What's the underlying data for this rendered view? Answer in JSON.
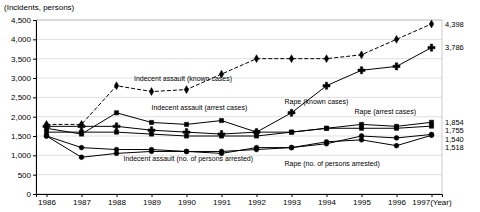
{
  "chart_data": {
    "type": "line",
    "y_label": "(Incidents, persons)",
    "x": [
      1986,
      1987,
      1988,
      1989,
      1990,
      1991,
      1992,
      1993,
      1994,
      1995,
      1996,
      1997
    ],
    "xlim": [
      1985.7,
      1997.3
    ],
    "xticks": [
      1986,
      1987,
      1988,
      1989,
      1990,
      1991,
      1992,
      1993,
      1994,
      1995,
      1996,
      {
        "value": 1997,
        "label": "1997(Year)"
      }
    ],
    "ylim": [
      0,
      4500
    ],
    "yticks": [
      0,
      500,
      {
        "value": 1000,
        "label": "1,000"
      },
      {
        "value": 1500,
        "label": "1,500"
      },
      {
        "value": 2000,
        "label": "2,000"
      },
      {
        "value": 2500,
        "label": "2,500"
      },
      {
        "value": 3000,
        "label": "3,000"
      },
      {
        "value": 3500,
        "label": "3,500"
      },
      {
        "value": 4000,
        "label": "4,000"
      },
      {
        "value": 4500,
        "label": "4,500"
      }
    ],
    "grid": true,
    "series": [
      {
        "color": "#000000",
        "marker": "diamond",
        "line_style": "dashed",
        "values": [
          1800,
          1800,
          2800,
          2650,
          2700,
          3100,
          3500,
          3500,
          3500,
          3600,
          4000,
          4398
        ],
        "value_labels": [
          null,
          null,
          null,
          null,
          null,
          null,
          null,
          null,
          null,
          null,
          null,
          "4,398"
        ]
      },
      {
        "color": "#000000",
        "marker": "plus",
        "line_style": "solid",
        "values": [
          1750,
          1750,
          1750,
          1650,
          1600,
          1550,
          1600,
          2100,
          2800,
          3200,
          3300,
          3786
        ],
        "value_labels": [
          null,
          null,
          null,
          null,
          null,
          null,
          null,
          null,
          null,
          null,
          null,
          "3,786"
        ]
      },
      {
        "color": "#000000",
        "marker": "square",
        "line_style": "solid",
        "values": [
          1700,
          1550,
          2100,
          1850,
          1800,
          1900,
          1600,
          1600,
          1700,
          1700,
          1700,
          1755
        ],
        "value_labels": [
          null,
          null,
          null,
          null,
          null,
          null,
          null,
          null,
          null,
          null,
          null,
          "1,755"
        ]
      },
      {
        "color": "#000000",
        "marker": "square",
        "line_style": "solid",
        "values": [
          1600,
          1600,
          1600,
          1550,
          1500,
          1500,
          1500,
          1600,
          1700,
          1800,
          1750,
          1854
        ],
        "value_labels": [
          null,
          null,
          null,
          null,
          null,
          null,
          null,
          null,
          null,
          null,
          null,
          "1,854"
        ]
      },
      {
        "color": "#000000",
        "marker": "circle",
        "line_style": "solid",
        "values": [
          1500,
          950,
          1050,
          1100,
          1100,
          1050,
          1200,
          1200,
          1300,
          1500,
          1450,
          1540
        ],
        "value_labels": [
          null,
          null,
          null,
          null,
          null,
          null,
          null,
          null,
          null,
          null,
          null,
          "1,540"
        ]
      },
      {
        "color": "#000000",
        "marker": "circle",
        "line_style": "solid",
        "values": [
          1500,
          1200,
          1150,
          1150,
          1100,
          1100,
          1150,
          1200,
          1350,
          1400,
          1250,
          1518
        ],
        "value_labels": [
          null,
          null,
          null,
          null,
          null,
          null,
          null,
          null,
          null,
          null,
          null,
          "1,518"
        ]
      }
    ],
    "annotations": [
      {
        "text": "Indecent assault (known cases)",
        "x": 1988.5,
        "y": 2900
      },
      {
        "text": "Indecent assault (arrest cases)",
        "x": 1989.0,
        "y": 2150
      },
      {
        "text": "Rape (known cases)",
        "x": 1992.8,
        "y": 2300
      },
      {
        "text": "Rape (arrest cases)",
        "x": 1994.8,
        "y": 2050
      },
      {
        "text": "Indecent assault (no. of persons arrested)",
        "x": 1988.2,
        "y": 820
      },
      {
        "text": "Rape (no. of persons arrested)",
        "x": 1992.8,
        "y": 700
      }
    ]
  }
}
